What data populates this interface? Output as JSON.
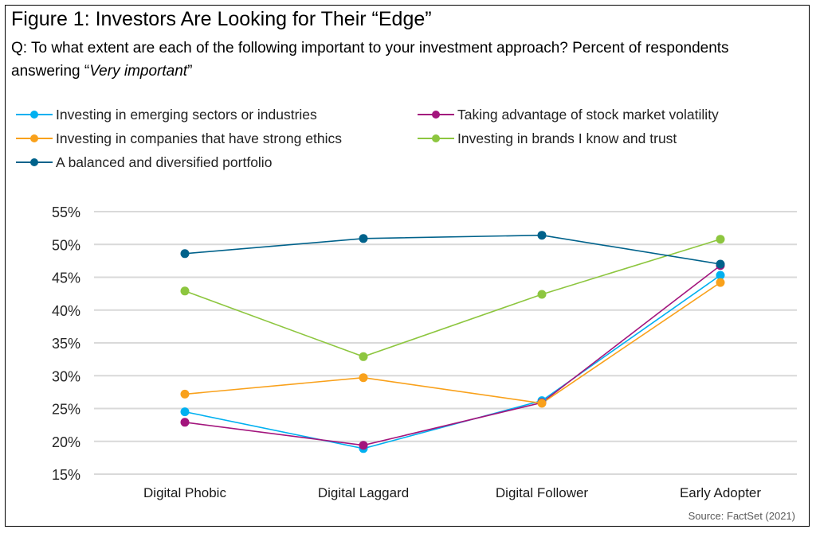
{
  "figure": {
    "title": "Figure 1: Investors Are Looking for Their “Edge”",
    "question_prefix": "Q: To what extent are each of the following important to your investment approach? Percent of respondents answering “",
    "question_emphasis": "Very important",
    "question_suffix": "”",
    "source": "Source: FactSet (2021)"
  },
  "chart_data": {
    "type": "line",
    "title": "Figure 1: Investors Are Looking for Their “Edge”",
    "xlabel": "",
    "ylabel": "",
    "categories": [
      "Digital Phobic",
      "Digital Laggard",
      "Digital Follower",
      "Early Adopter"
    ],
    "ylim": [
      15,
      55
    ],
    "yticks": [
      15,
      20,
      25,
      30,
      35,
      40,
      45,
      50,
      55
    ],
    "ytick_labels": [
      "15%",
      "20%",
      "25%",
      "30%",
      "35%",
      "40%",
      "45%",
      "50%",
      "55%"
    ],
    "grid": true,
    "legend_position": "top",
    "series": [
      {
        "name": "Investing in emerging sectors or industries",
        "color": "#00b0f0",
        "values": [
          24.5,
          18.9,
          26.2,
          45.3
        ]
      },
      {
        "name": "Taking advantage of stock market volatility",
        "color": "#a3157d",
        "values": [
          22.9,
          19.4,
          25.9,
          46.8
        ]
      },
      {
        "name": "Investing in companies that have strong ethics",
        "color": "#f9a11b",
        "values": [
          27.2,
          29.7,
          25.8,
          44.2
        ]
      },
      {
        "name": "Investing in brands I know and trust",
        "color": "#8dc63f",
        "values": [
          42.9,
          32.9,
          42.4,
          50.8
        ]
      },
      {
        "name": "A balanced and diversified portfolio",
        "color": "#00628b",
        "values": [
          48.6,
          50.9,
          51.4,
          47.0
        ]
      }
    ]
  }
}
